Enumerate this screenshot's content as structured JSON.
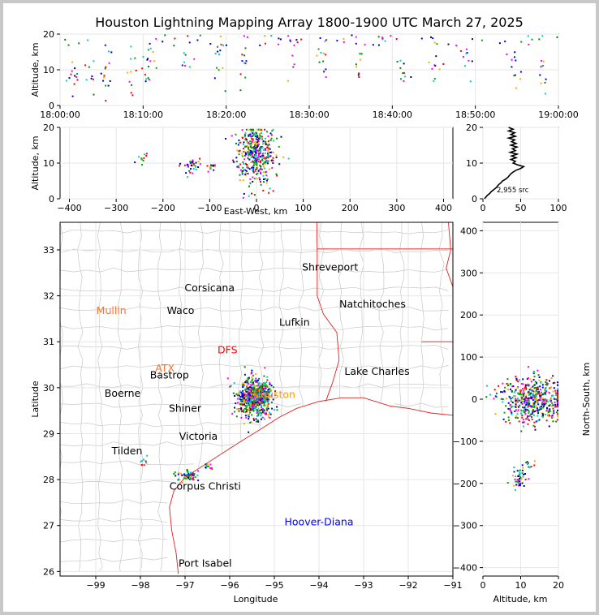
{
  "title": "Houston Lightning Mapping Array 1800-1900 UTC March 27, 2025",
  "colors": {
    "state_border": "#e02020",
    "county": "#c8c8c8",
    "coast": "#e02020",
    "source_palette": [
      "#0000ff",
      "#00aa00",
      "#00cccc",
      "#ff0000",
      "#ff00ff",
      "#ffaa00",
      "#000080",
      "#008800"
    ]
  },
  "chart_data": [
    {
      "id": "time_height",
      "type": "scatter",
      "ylabel": "Altitude, km",
      "ylim": [
        0,
        20
      ],
      "yticks": [
        "0",
        "10",
        "20"
      ],
      "xticks": [
        "18:00:00",
        "18:10:00",
        "18:20:00",
        "18:30:00",
        "18:40:00",
        "18:50:00",
        "19:00:00"
      ],
      "xlim_minutes": [
        0,
        60
      ],
      "clusters": [
        {
          "t": 1.5,
          "z": 9,
          "n": 12
        },
        {
          "t": 3.5,
          "z": 9.5,
          "n": 8
        },
        {
          "t": 5.5,
          "z": 10,
          "n": 14
        },
        {
          "t": 8.5,
          "z": 11,
          "n": 10
        },
        {
          "t": 10.5,
          "z": 10,
          "n": 16
        },
        {
          "t": 15,
          "z": 13,
          "n": 8
        },
        {
          "t": 19,
          "z": 12,
          "n": 12
        },
        {
          "t": 22,
          "z": 13,
          "n": 10
        },
        {
          "t": 28,
          "z": 12,
          "n": 8
        },
        {
          "t": 31.5,
          "z": 13,
          "n": 12
        },
        {
          "t": 36,
          "z": 12,
          "n": 8
        },
        {
          "t": 41,
          "z": 12,
          "n": 10
        },
        {
          "t": 45,
          "z": 11,
          "n": 10
        },
        {
          "t": 49,
          "z": 13,
          "n": 10
        },
        {
          "t": 54.5,
          "z": 11,
          "n": 12
        },
        {
          "t": 58,
          "z": 12,
          "n": 10
        }
      ]
    },
    {
      "id": "ew_height",
      "type": "scatter",
      "xlabel": "East-West, km",
      "ylabel": "Altitude, km",
      "xlim": [
        -420,
        420
      ],
      "ylim": [
        0,
        20
      ],
      "xticks": [
        "−400",
        "−300",
        "−200",
        "−100",
        "0",
        "100",
        "200",
        "300",
        "400"
      ],
      "yticks": [
        "0",
        "10",
        "20"
      ],
      "clusters": [
        {
          "x": -245,
          "z": 12,
          "sx": 5,
          "sz": 1,
          "n": 10
        },
        {
          "x": -145,
          "z": 9.5,
          "sx": 10,
          "sz": 1.2,
          "n": 35
        },
        {
          "x": -100,
          "z": 9,
          "sx": 5,
          "sz": 1,
          "n": 12
        },
        {
          "x": -5,
          "z": 13,
          "sx": 22,
          "sz": 4,
          "n": 420
        }
      ]
    },
    {
      "id": "height_hist",
      "type": "line",
      "xlim": [
        0,
        100
      ],
      "ylim": [
        0,
        20
      ],
      "xticks": [
        "0",
        "50",
        "100"
      ],
      "yticks": [
        "0",
        "10",
        "20"
      ],
      "annotation": "2,955 src",
      "profile": [
        [
          2,
          0
        ],
        [
          4,
          0.5
        ],
        [
          6,
          1
        ],
        [
          9,
          1.5
        ],
        [
          11,
          2
        ],
        [
          14,
          2.5
        ],
        [
          17,
          3
        ],
        [
          19,
          3.5
        ],
        [
          21,
          4
        ],
        [
          24,
          4.5
        ],
        [
          26,
          5
        ],
        [
          30,
          5.5
        ],
        [
          33,
          6
        ],
        [
          35,
          6.5
        ],
        [
          37,
          7
        ],
        [
          40,
          7.5
        ],
        [
          44,
          8
        ],
        [
          50,
          8.5
        ],
        [
          54,
          9
        ],
        [
          46,
          9.5
        ],
        [
          40,
          10
        ],
        [
          43,
          10.5
        ],
        [
          37,
          11
        ],
        [
          44,
          11.5
        ],
        [
          38,
          12
        ],
        [
          45,
          12.5
        ],
        [
          36,
          13
        ],
        [
          43,
          13.5
        ],
        [
          39,
          14
        ],
        [
          45,
          14.5
        ],
        [
          37,
          15
        ],
        [
          44,
          15.5
        ],
        [
          38,
          16
        ],
        [
          42,
          16.5
        ],
        [
          34,
          17
        ],
        [
          43,
          17.5
        ],
        [
          37,
          18
        ],
        [
          42,
          18.5
        ],
        [
          34,
          19
        ],
        [
          40,
          19.5
        ],
        [
          34,
          20
        ]
      ]
    },
    {
      "id": "plan_view",
      "type": "scatter",
      "xlabel": "Longitude",
      "ylabel": "Latitude",
      "xlim": [
        -99.8,
        -91
      ],
      "ylim": [
        25.9,
        33.6
      ],
      "xticks": [
        "−99",
        "−98",
        "−97",
        "−96",
        "−95",
        "−94",
        "−93",
        "−92",
        "−91"
      ],
      "yticks": [
        "26",
        "27",
        "28",
        "29",
        "30",
        "31",
        "32",
        "33"
      ],
      "clusters": [
        {
          "lon": -95.45,
          "lat": 29.8,
          "slon": 0.18,
          "slat": 0.2,
          "n": 700
        },
        {
          "lon": -96.95,
          "lat": 28.1,
          "slon": 0.12,
          "slat": 0.05,
          "n": 60
        },
        {
          "lon": -96.5,
          "lat": 28.3,
          "slon": 0.06,
          "slat": 0.04,
          "n": 12
        },
        {
          "lon": -97.95,
          "lat": 28.4,
          "slon": 0.05,
          "slat": 0.05,
          "n": 10
        }
      ]
    },
    {
      "id": "ns_height",
      "type": "scatter",
      "xlabel": "Altitude, km",
      "ylabel": "North-South, km",
      "xlim": [
        0,
        20
      ],
      "ylim": [
        -420,
        420
      ],
      "xticks": [
        "0",
        "10",
        "20"
      ],
      "yticks": [
        "−400",
        "−300",
        "−200",
        "−100",
        "0",
        "100",
        "200",
        "300",
        "400"
      ],
      "clusters": [
        {
          "z": 13,
          "y": 0,
          "sz": 4,
          "sy": 28,
          "n": 500
        },
        {
          "z": 9.5,
          "y": -185,
          "sz": 1,
          "sy": 12,
          "n": 45
        },
        {
          "z": 12,
          "y": -155,
          "sz": 0.8,
          "sy": 6,
          "n": 10
        }
      ]
    }
  ],
  "cities": [
    {
      "name": "Shreveport",
      "lon": -93.75,
      "lat": 32.55,
      "color": "#000000"
    },
    {
      "name": "Corsicana",
      "lon": -96.45,
      "lat": 32.1,
      "color": "#000000"
    },
    {
      "name": "Mullin",
      "lon": -98.65,
      "lat": 31.6,
      "color": "#ff7030"
    },
    {
      "name": "Waco",
      "lon": -97.1,
      "lat": 31.6,
      "color": "#000000"
    },
    {
      "name": "Natchitoches",
      "lon": -92.8,
      "lat": 31.75,
      "color": "#000000"
    },
    {
      "name": "Lufkin",
      "lon": -94.55,
      "lat": 31.35,
      "color": "#000000"
    },
    {
      "name": "DFS",
      "lon": -96.05,
      "lat": 30.75,
      "color": "#ff0000"
    },
    {
      "name": "ATX",
      "lon": -97.45,
      "lat": 30.35,
      "color": "#ff7030"
    },
    {
      "name": "Bastrop",
      "lon": -97.35,
      "lat": 30.2,
      "color": "#000000"
    },
    {
      "name": "Lake Charles",
      "lon": -92.7,
      "lat": 30.28,
      "color": "#000000"
    },
    {
      "name": "Boerne",
      "lon": -98.4,
      "lat": 29.8,
      "color": "#000000"
    },
    {
      "name": "Houston",
      "lon": -95.0,
      "lat": 29.78,
      "color": "#ff9900"
    },
    {
      "name": "Shiner",
      "lon": -97.0,
      "lat": 29.48,
      "color": "#000000"
    },
    {
      "name": "Victoria",
      "lon": -96.7,
      "lat": 28.87,
      "color": "#000000"
    },
    {
      "name": "Tilden",
      "lon": -98.3,
      "lat": 28.55,
      "color": "#000000"
    },
    {
      "name": "Corpus Christi",
      "lon": -96.55,
      "lat": 27.78,
      "color": "#000000"
    },
    {
      "name": "Hoover-Diana",
      "lon": -94.0,
      "lat": 27.0,
      "color": "#0000ff"
    },
    {
      "name": "Port Isabel",
      "lon": -96.55,
      "lat": 26.1,
      "color": "#000000"
    }
  ]
}
